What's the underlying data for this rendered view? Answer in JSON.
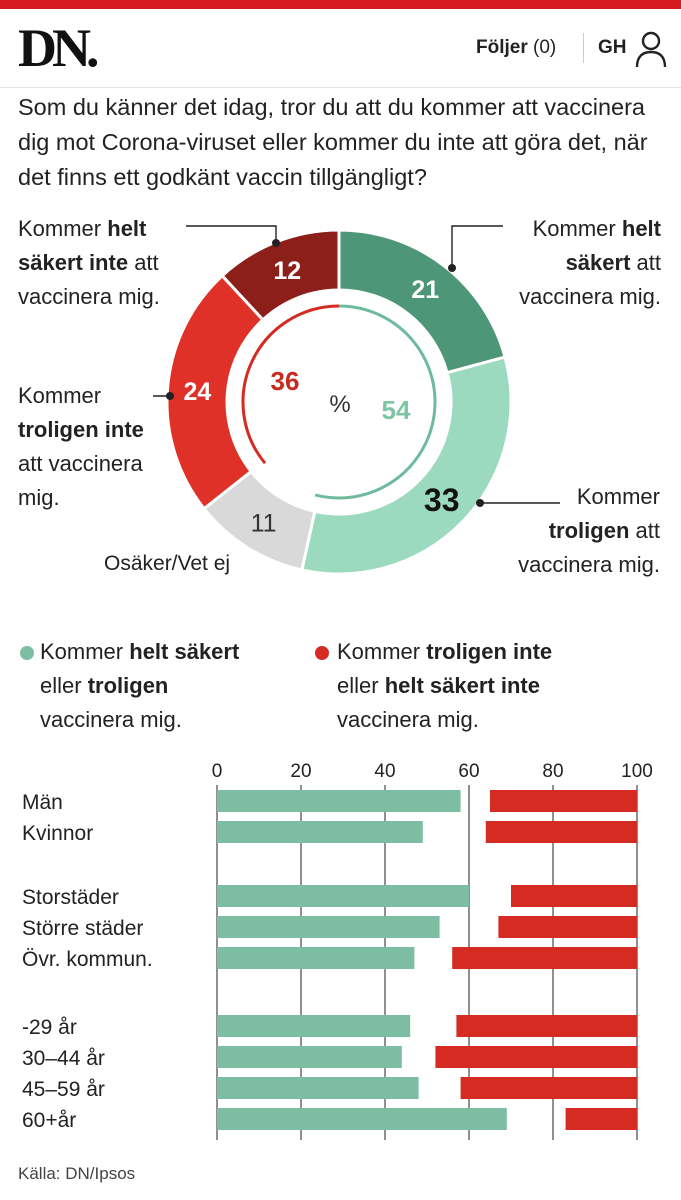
{
  "header": {
    "logo": "DN.",
    "follow_label": "Följer",
    "follow_count": "(0)",
    "user_initials": "GH",
    "user_icon": "user-icon"
  },
  "question": "Som du känner det idag, tror du att du kommer att vaccinera dig mot Corona-viruset eller kommer du inte att göra det, när det finns ett godkänt vaccin tillgängligt?",
  "colors": {
    "helt_sakert": "#4e9678",
    "troligen": "#9bdabf",
    "osaker": "#d9d9d9",
    "troligen_inte": "#e03128",
    "helt_sakert_inte": "#8c1f1a",
    "yes_bar": "#7cbda3",
    "no_bar": "#d62b22",
    "inner_green": "#6dbb9c",
    "inner_red": "#d62b22",
    "red_text": "#c62a20",
    "green_text": "#7cc5a5"
  },
  "callouts": {
    "helt_sakert": {
      "pre": "Kommer",
      "bold": "helt säkert",
      "post": "att vaccinera mig."
    },
    "troligen": {
      "pre": "Kommer",
      "bold": "troligen",
      "post": "att vaccinera mig."
    },
    "troligen_inte": {
      "pre": "Kommer",
      "bold": "troligen inte",
      "post": "att vaccinera mig."
    },
    "helt_sakert_inte": {
      "pre": "Kommer",
      "bold": "helt säkert inte",
      "post": "att vaccinera mig."
    },
    "osaker": {
      "text": "Osäker/Vet ej"
    }
  },
  "legend": {
    "yes": {
      "pre": "Kommer",
      "bold1": "helt säkert",
      "mid": "eller",
      "bold2": "troligen",
      "post": "vaccinera mig."
    },
    "no": {
      "pre": "Kommer",
      "bold1": "troligen inte",
      "mid": "eller",
      "bold2": "helt säkert inte",
      "post": "vaccinera mig."
    }
  },
  "source": "Källa: DN/Ipsos",
  "chart_data": [
    {
      "type": "pie",
      "title": "Som du känner det idag, tror du att du kommer att vaccinera dig mot Corona-viruset eller kommer du inte att göra det, när det finns ett godkänt vaccin tillgängligt?",
      "unit": "%",
      "slices": [
        {
          "key": "helt_sakert",
          "label": "Kommer helt säkert att vaccinera mig.",
          "value": 21
        },
        {
          "key": "troligen",
          "label": "Kommer troligen att vaccinera mig.",
          "value": 33
        },
        {
          "key": "osaker",
          "label": "Osäker/Vet ej",
          "value": 11
        },
        {
          "key": "troligen_inte",
          "label": "Kommer troligen inte att vaccinera mig.",
          "value": 24
        },
        {
          "key": "helt_sakert_inte",
          "label": "Kommer helt säkert inte att vaccinera mig.",
          "value": 12
        }
      ],
      "totals": {
        "yes": 54,
        "no": 36
      }
    },
    {
      "type": "bar",
      "orientation": "horizontal",
      "stacking": "diverging-from-ends",
      "xlim": [
        0,
        100
      ],
      "xticks": [
        0,
        20,
        40,
        60,
        80,
        100
      ],
      "grid": true,
      "groups": [
        [
          {
            "category": "Män",
            "yes": 58,
            "no": 35
          },
          {
            "category": "Kvinnor",
            "yes": 49,
            "no": 36
          }
        ],
        [
          {
            "category": "Storstäder",
            "yes": 60,
            "no": 30
          },
          {
            "category": "Större städer",
            "yes": 53,
            "no": 33
          },
          {
            "category": "Övr. kommun.",
            "yes": 47,
            "no": 44
          }
        ],
        [
          {
            "category": "-29 år",
            "yes": 46,
            "no": 43
          },
          {
            "category": "30–44 år",
            "yes": 44,
            "no": 48
          },
          {
            "category": "45–59 år",
            "yes": 48,
            "no": 42
          },
          {
            "category": "60+år",
            "yes": 69,
            "no": 17
          }
        ]
      ]
    }
  ]
}
